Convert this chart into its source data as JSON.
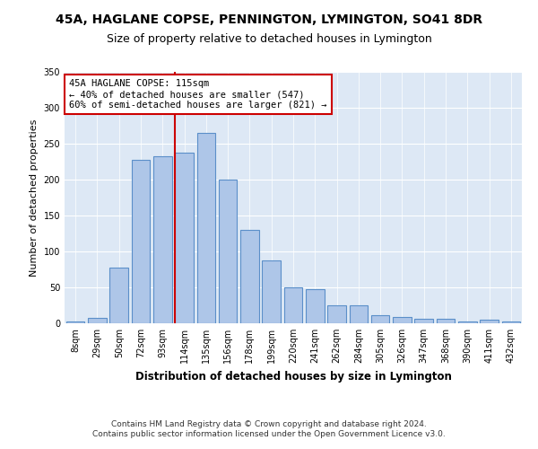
{
  "title": "45A, HAGLANE COPSE, PENNINGTON, LYMINGTON, SO41 8DR",
  "subtitle": "Size of property relative to detached houses in Lymington",
  "xlabel": "Distribution of detached houses by size in Lymington",
  "ylabel": "Number of detached properties",
  "categories": [
    "8sqm",
    "29sqm",
    "50sqm",
    "72sqm",
    "93sqm",
    "114sqm",
    "135sqm",
    "156sqm",
    "178sqm",
    "199sqm",
    "220sqm",
    "241sqm",
    "262sqm",
    "284sqm",
    "305sqm",
    "326sqm",
    "347sqm",
    "368sqm",
    "390sqm",
    "411sqm",
    "432sqm"
  ],
  "values": [
    2,
    8,
    77,
    228,
    232,
    238,
    265,
    200,
    130,
    88,
    50,
    47,
    25,
    25,
    11,
    9,
    6,
    6,
    3,
    5,
    3
  ],
  "bar_color": "#aec6e8",
  "bar_edge_color": "#5b8fc9",
  "background_color": "#dde8f5",
  "vline_color": "#cc0000",
  "annotation_text": "45A HAGLANE COPSE: 115sqm\n← 40% of detached houses are smaller (547)\n60% of semi-detached houses are larger (821) →",
  "annotation_box_color": "#ffffff",
  "annotation_box_edge": "#cc0000",
  "footer": "Contains HM Land Registry data © Crown copyright and database right 2024.\nContains public sector information licensed under the Open Government Licence v3.0.",
  "ylim": [
    0,
    350
  ],
  "title_fontsize": 10,
  "subtitle_fontsize": 9
}
